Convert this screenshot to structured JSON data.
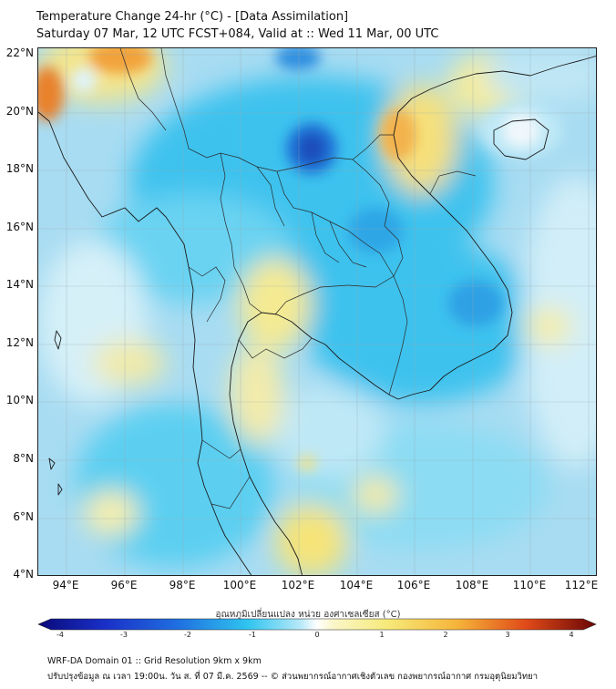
{
  "title": {
    "line1": "Temperature Change 24-hr (°C) - [Data Assimilation]",
    "line2": "Saturday 07 Mar, 12 UTC FCST+084, Valid at :: Wed 11 Mar, 00 UTC"
  },
  "map": {
    "lat_labels": [
      "22°N",
      "20°N",
      "18°N",
      "16°N",
      "14°N",
      "12°N",
      "10°N",
      "8°N",
      "6°N",
      "4°N"
    ],
    "lon_labels": [
      "94°E",
      "96°E",
      "98°E",
      "100°E",
      "102°E",
      "104°E",
      "106°E",
      "108°E",
      "110°E",
      "112°E"
    ],
    "lat_range": [
      4,
      22.2
    ],
    "lon_range": [
      93,
      112.3
    ]
  },
  "colorbar": {
    "title": "อุณหภูมิเปลี่ยนแปลง หน่วย องศาเซลเซียส (°C)",
    "ticks": [
      "-4",
      "-3",
      "-2",
      "-1",
      "0",
      "1",
      "2",
      "3",
      "4"
    ],
    "range": [
      -4,
      4
    ]
  },
  "footer": {
    "line1": "WRF-DA Domain 01 :: Grid Resolution 9km x 9km",
    "line2": "ปรับปรุงข้อมูล ณ เวลา 19:00น. วัน ส. ที่ 07 มี.ค. 2569 -- © ส่วนพยากรณ์อากาศเชิงตัวเลข กองพยากรณ์อากาศ กรมอุตุนิยมวิทยา"
  }
}
